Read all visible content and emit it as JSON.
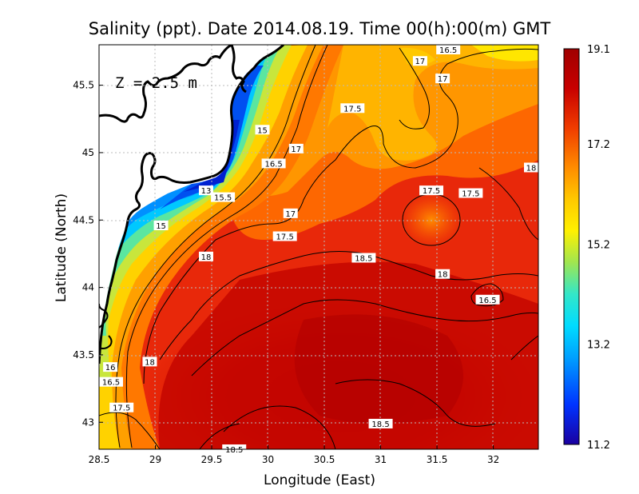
{
  "title": "Salinity (ppt). Date 2014.08.19. Time 00(h):00(m) GMT",
  "depth_label": "Z = 2.5 m",
  "axes": {
    "xlabel": "Longitude (East)",
    "ylabel": "Latitude (North)",
    "xticks": [
      "28.5",
      "29",
      "29.5",
      "30",
      "30.5",
      "31",
      "31.5",
      "32"
    ],
    "yticks": [
      "45.5",
      "45",
      "44.5",
      "44",
      "43.5",
      "43"
    ],
    "xlim": [
      28.5,
      32.4
    ],
    "ylim": [
      42.8,
      45.8
    ]
  },
  "colorbar": {
    "labels": [
      "19.1",
      "17.2",
      "15.2",
      "13.2",
      "11.2"
    ],
    "min": 11.2,
    "max": 19.1,
    "colors": [
      "#1a00a0",
      "#0033ff",
      "#00b4ff",
      "#33e6c8",
      "#a0e650",
      "#fff000",
      "#ffb400",
      "#ff7800",
      "#f03c00",
      "#c80000",
      "#a00000"
    ]
  },
  "contour_labels": [
    {
      "text": "16.5",
      "lon": 31.6,
      "lat": 45.78
    },
    {
      "text": "17",
      "lon": 31.35,
      "lat": 45.68
    },
    {
      "text": "17",
      "lon": 31.55,
      "lat": 45.55
    },
    {
      "text": "17.5",
      "lon": 30.75,
      "lat": 45.33
    },
    {
      "text": "15",
      "lon": 29.95,
      "lat": 45.17
    },
    {
      "text": "17",
      "lon": 30.25,
      "lat": 45.03
    },
    {
      "text": "16.5",
      "lon": 30.05,
      "lat": 44.92
    },
    {
      "text": "18",
      "lon": 32.35,
      "lat": 44.89
    },
    {
      "text": "13",
      "lon": 29.45,
      "lat": 44.72
    },
    {
      "text": "15.5",
      "lon": 29.6,
      "lat": 44.67
    },
    {
      "text": "17.5",
      "lon": 31.45,
      "lat": 44.72
    },
    {
      "text": "17.5",
      "lon": 31.8,
      "lat": 44.7
    },
    {
      "text": "17",
      "lon": 30.2,
      "lat": 44.55
    },
    {
      "text": "15",
      "lon": 29.05,
      "lat": 44.46
    },
    {
      "text": "17.5",
      "lon": 30.15,
      "lat": 44.38
    },
    {
      "text": "18",
      "lon": 29.45,
      "lat": 44.23
    },
    {
      "text": "18.5",
      "lon": 30.85,
      "lat": 44.22
    },
    {
      "text": "18",
      "lon": 31.55,
      "lat": 44.1
    },
    {
      "text": "16.5",
      "lon": 31.95,
      "lat": 43.91
    },
    {
      "text": "18",
      "lon": 28.95,
      "lat": 43.45
    },
    {
      "text": "16",
      "lon": 28.6,
      "lat": 43.41
    },
    {
      "text": "16.5",
      "lon": 28.55,
      "lat": 43.3
    },
    {
      "text": "17.5",
      "lon": 28.7,
      "lat": 43.11
    },
    {
      "text": "18.5",
      "lon": 31.0,
      "lat": 42.99
    },
    {
      "text": "18.5",
      "lon": 29.7,
      "lat": 42.8
    }
  ]
}
